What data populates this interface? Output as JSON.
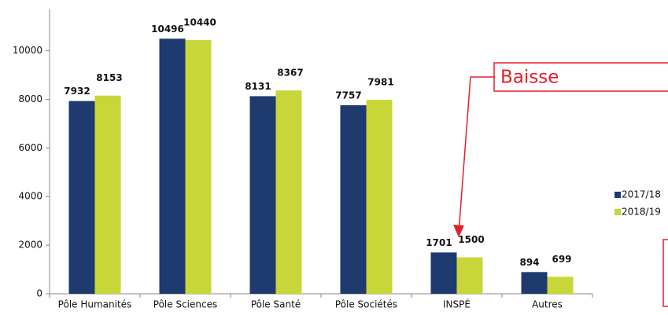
{
  "chart_data": {
    "type": "bar",
    "categories": [
      "Pôle Humanités",
      "Pôle Sciences",
      "Pôle Santé",
      "Pôle Sociétés",
      "INSPÉ",
      "Autres"
    ],
    "series": [
      {
        "name": "2017/18",
        "color": "#1f3a6e",
        "values": [
          7932,
          10496,
          8131,
          7757,
          1701,
          894
        ]
      },
      {
        "name": "2018/19",
        "color": "#c8d63a",
        "values": [
          8153,
          10440,
          8367,
          7981,
          1500,
          699
        ]
      }
    ],
    "ylim": [
      0,
      11700
    ],
    "yticks": [
      0,
      2000,
      4000,
      6000,
      8000,
      10000
    ],
    "legend": "right",
    "annotation": "Baisse"
  }
}
